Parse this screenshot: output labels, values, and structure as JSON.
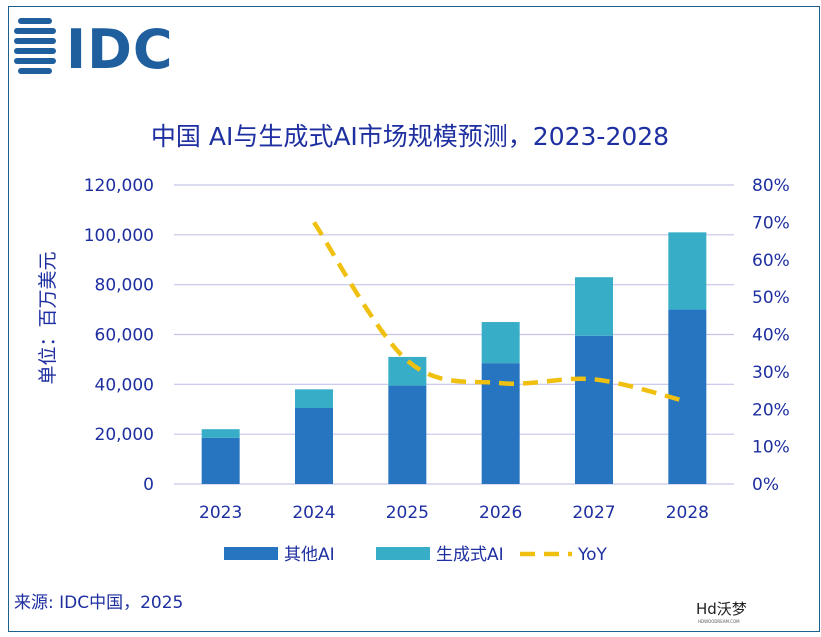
{
  "brand": {
    "logo_text": "IDC"
  },
  "source_text": "来源: IDC中国，2025",
  "watermark": {
    "text": "Hd沃梦",
    "sub": "HDWOODREAM.COM"
  },
  "colors": {
    "series_other": "#2775c0",
    "series_genai": "#38adc8",
    "yoy": "#f0c010",
    "text": "#1e2fa0",
    "grid": "#c5c5eb"
  },
  "chart_data": {
    "type": "bar",
    "stacked": true,
    "title": "中国 AI与生成式AI市场规模预测，2023-2028",
    "xlabel": "",
    "ylabel": "单位：百万美元",
    "categories": [
      "2023",
      "2024",
      "2025",
      "2026",
      "2027",
      "2028"
    ],
    "ylim": [
      0,
      120000
    ],
    "y_ticks": [
      "0",
      "20,000",
      "40,000",
      "60,000",
      "80,000",
      "100,000",
      "120,000"
    ],
    "y2lim": [
      0,
      80
    ],
    "y2_ticks": [
      "0%",
      "10%",
      "20%",
      "30%",
      "40%",
      "50%",
      "60%",
      "70%",
      "80%"
    ],
    "grid": true,
    "legend_position": "bottom",
    "series": [
      {
        "name": "其他AI",
        "type": "bar",
        "values": [
          18500,
          30500,
          39500,
          48500,
          59500,
          70000
        ]
      },
      {
        "name": "生成式AI",
        "type": "bar",
        "values": [
          3500,
          7500,
          11500,
          16500,
          23500,
          31000
        ]
      },
      {
        "name": "YoY",
        "type": "line",
        "axis": "right",
        "values": [
          null,
          70,
          33,
          27,
          28,
          22
        ]
      }
    ]
  }
}
